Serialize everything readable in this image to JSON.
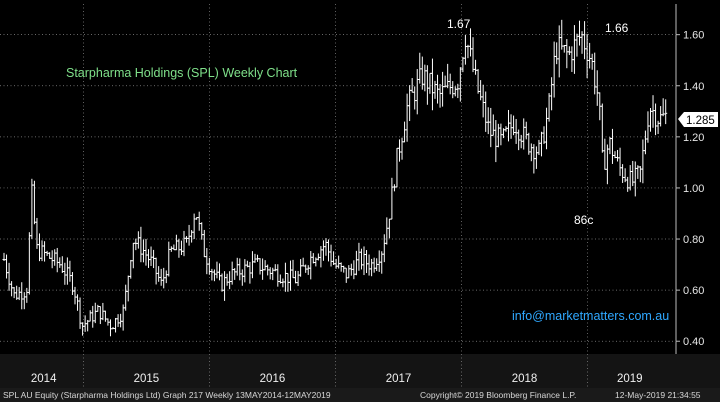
{
  "chart_data": {
    "type": "bar",
    "title": "Starpharma Holdings (SPL) Weekly Chart",
    "ylim": [
      0.35,
      1.72
    ],
    "y_ticks": [
      "0.40",
      "0.60",
      "0.80",
      "1.00",
      "1.20",
      "1.40",
      "1.60"
    ],
    "x_ticks": [
      "2014",
      "2015",
      "2016",
      "2017",
      "2018",
      "2019"
    ],
    "last_price": "1.285",
    "annotations": [
      "1.67",
      "1.66",
      "86c"
    ],
    "watermark": "info@marketmatters.com.au",
    "grid": true,
    "colors": {
      "background": "#000000",
      "bars": "#ffffff",
      "title": "#7fe08a",
      "grid": "#8a8a8a",
      "watermark": "#2fa8ff",
      "last_price_box": "#ffffff"
    },
    "anchors": [
      {
        "t": 0.0,
        "p": 0.72
      },
      {
        "t": 0.08,
        "p": 0.58
      },
      {
        "t": 0.18,
        "p": 0.6
      },
      {
        "t": 0.22,
        "p": 0.98
      },
      {
        "t": 0.26,
        "p": 0.76
      },
      {
        "t": 0.45,
        "p": 0.7
      },
      {
        "t": 0.55,
        "p": 0.62
      },
      {
        "t": 0.62,
        "p": 0.46
      },
      {
        "t": 0.75,
        "p": 0.52
      },
      {
        "t": 0.85,
        "p": 0.46
      },
      {
        "t": 0.95,
        "p": 0.52
      },
      {
        "t": 1.02,
        "p": 0.8
      },
      {
        "t": 1.1,
        "p": 0.76
      },
      {
        "t": 1.18,
        "p": 0.7
      },
      {
        "t": 1.25,
        "p": 0.62
      },
      {
        "t": 1.32,
        "p": 0.75
      },
      {
        "t": 1.45,
        "p": 0.78
      },
      {
        "t": 1.52,
        "p": 0.92
      },
      {
        "t": 1.58,
        "p": 0.76
      },
      {
        "t": 1.65,
        "p": 0.68
      },
      {
        "t": 1.72,
        "p": 0.62
      },
      {
        "t": 1.8,
        "p": 0.66
      },
      {
        "t": 2.0,
        "p": 0.7
      },
      {
        "t": 2.2,
        "p": 0.66
      },
      {
        "t": 2.32,
        "p": 0.64
      },
      {
        "t": 2.42,
        "p": 0.72
      },
      {
        "t": 2.55,
        "p": 0.78
      },
      {
        "t": 2.62,
        "p": 0.7
      },
      {
        "t": 2.72,
        "p": 0.66
      },
      {
        "t": 2.82,
        "p": 0.72
      },
      {
        "t": 2.92,
        "p": 0.7
      },
      {
        "t": 3.0,
        "p": 0.76
      },
      {
        "t": 3.05,
        "p": 0.88
      },
      {
        "t": 3.12,
        "p": 1.12
      },
      {
        "t": 3.2,
        "p": 1.32
      },
      {
        "t": 3.32,
        "p": 1.44
      },
      {
        "t": 3.45,
        "p": 1.36
      },
      {
        "t": 3.6,
        "p": 1.42
      },
      {
        "t": 3.66,
        "p": 1.6
      },
      {
        "t": 3.75,
        "p": 1.4
      },
      {
        "t": 3.85,
        "p": 1.22
      },
      {
        "t": 3.95,
        "p": 1.18
      },
      {
        "t": 4.05,
        "p": 1.26
      },
      {
        "t": 4.15,
        "p": 1.18
      },
      {
        "t": 4.25,
        "p": 1.14
      },
      {
        "t": 4.32,
        "p": 1.3
      },
      {
        "t": 4.38,
        "p": 1.55
      },
      {
        "t": 4.48,
        "p": 1.52
      },
      {
        "t": 4.58,
        "p": 1.6
      },
      {
        "t": 4.66,
        "p": 1.5
      },
      {
        "t": 4.72,
        "p": 1.34
      },
      {
        "t": 4.75,
        "p": 1.08
      },
      {
        "t": 4.8,
        "p": 1.18
      },
      {
        "t": 4.88,
        "p": 1.08
      },
      {
        "t": 4.98,
        "p": 1.02
      },
      {
        "t": 5.05,
        "p": 1.06
      },
      {
        "t": 5.12,
        "p": 1.32
      },
      {
        "t": 5.2,
        "p": 1.27
      },
      {
        "t": 5.25,
        "p": 1.28
      }
    ]
  },
  "footer": {
    "left": "SPL AU Equity (Starpharma Holdings Ltd) Graph 217  Weekly 13MAY2014-12MAY2019",
    "center": "Copyright© 2019 Bloomberg Finance L.P.",
    "right": "12-May-2019 21:34:55"
  }
}
